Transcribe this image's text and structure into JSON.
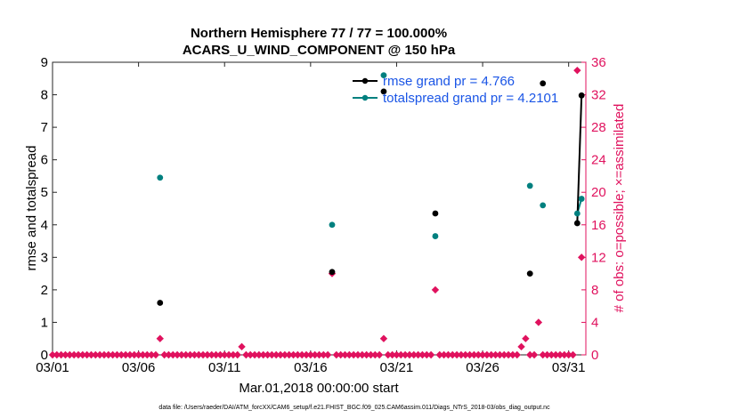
{
  "chart_data": {
    "type": "scatter",
    "title_line1": "Northern Hemisphere 77 / 77 = 100.000%",
    "title_line2": "ACARS_U_WIND_COMPONENT @ 150 hPa",
    "xlabel": "Mar.01,2018 00:00:00 start",
    "ylabel_left": "rmse and totalspread",
    "ylabel_right": "# of obs: o=possible; ×=assimilated",
    "xlim": [
      1,
      32
    ],
    "ylim_left": [
      0,
      9
    ],
    "ylim_right": [
      0,
      36
    ],
    "x_ticks": [
      1,
      6,
      11,
      16,
      21,
      26,
      31
    ],
    "x_tick_labels": [
      "03/01",
      "03/06",
      "03/11",
      "03/16",
      "03/21",
      "03/26",
      "03/31"
    ],
    "y_left_ticks": [
      "0",
      "1",
      "2",
      "3",
      "4",
      "5",
      "6",
      "7",
      "8",
      "9"
    ],
    "y_right_ticks": [
      "0",
      "4",
      "8",
      "12",
      "16",
      "20",
      "24",
      "28",
      "32",
      "36"
    ],
    "colors": {
      "rmse": "#000000",
      "totalspread": "#00807f",
      "obs": "#e0125e",
      "legend_text": "#1a55e6"
    },
    "series": [
      {
        "name": "rmse grand pr = 4.766",
        "axis": "left",
        "points": [
          [
            7.25,
            1.6
          ],
          [
            17.25,
            2.55
          ],
          [
            20.25,
            8.1
          ],
          [
            23.25,
            4.35
          ],
          [
            28.75,
            2.5
          ],
          [
            29.5,
            8.35
          ],
          [
            31.5,
            4.05
          ],
          [
            31.75,
            7.98
          ]
        ],
        "connected_tail": [
          [
            31.5,
            4.05
          ],
          [
            31.75,
            7.98
          ]
        ]
      },
      {
        "name": "totalspread grand pr = 4.2101",
        "axis": "left",
        "points": [
          [
            7.25,
            5.45
          ],
          [
            17.25,
            4.0
          ],
          [
            20.25,
            8.6
          ],
          [
            23.25,
            3.65
          ],
          [
            28.75,
            5.2
          ],
          [
            29.5,
            4.6
          ],
          [
            31.5,
            4.35
          ],
          [
            31.75,
            4.8
          ]
        ],
        "connected_tail": [
          [
            31.5,
            4.35
          ],
          [
            31.75,
            4.8
          ]
        ]
      },
      {
        "name": "obs count",
        "axis": "right",
        "x_start": 1,
        "x_step": 0.25,
        "values": [
          0,
          0,
          0,
          0,
          0,
          0,
          0,
          0,
          0,
          0,
          0,
          0,
          0,
          0,
          0,
          0,
          0,
          0,
          0,
          0,
          0,
          0,
          0,
          0,
          0,
          2,
          0,
          0,
          0,
          0,
          0,
          0,
          0,
          0,
          0,
          0,
          0,
          0,
          0,
          0,
          0,
          0,
          0,
          0,
          1,
          0,
          0,
          0,
          0,
          0,
          0,
          0,
          0,
          0,
          0,
          0,
          0,
          0,
          0,
          0,
          0,
          0,
          0,
          0,
          0,
          10,
          0,
          0,
          0,
          0,
          0,
          0,
          0,
          0,
          0,
          0,
          0,
          2,
          0,
          0,
          0,
          0,
          0,
          0,
          0,
          0,
          0,
          0,
          0,
          8,
          0,
          0,
          0,
          0,
          0,
          0,
          0,
          0,
          0,
          0,
          0,
          0,
          0,
          0,
          0,
          0,
          0,
          0,
          0,
          1,
          2,
          0,
          0,
          4,
          0,
          0,
          0,
          0,
          0,
          0,
          0,
          0,
          35,
          12
        ]
      }
    ]
  },
  "footer": "data file: /Users/raeder/DAI/ATM_forcXX/CAM6_setup/f.e21.FHIST_BGC.f09_025.CAM6assim.011/Diags_NTrS_2018-03/obs_diag_output.nc"
}
